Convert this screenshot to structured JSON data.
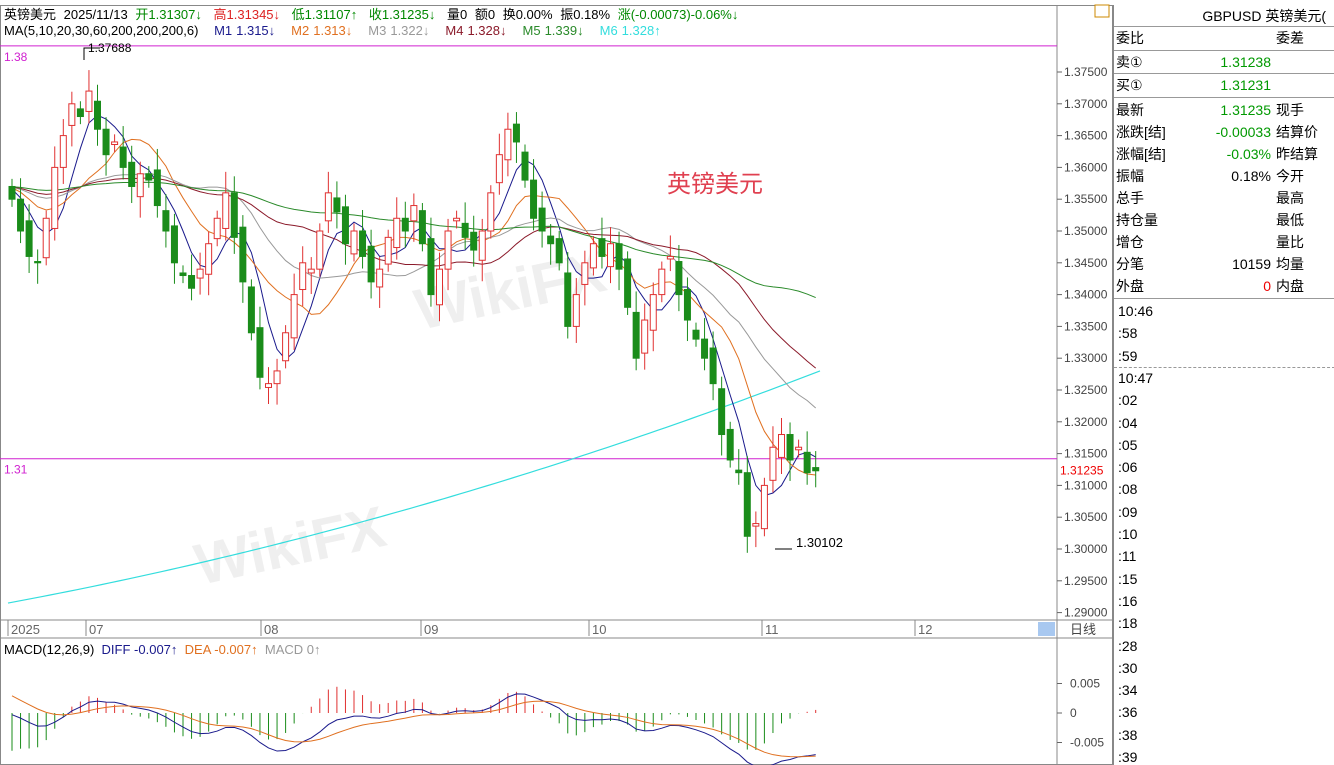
{
  "header": {
    "name": "英镑美元",
    "date": "2025/11/13",
    "open_label": "开",
    "open": "1.31307↓",
    "high_label": "高",
    "high": "1.31345↓",
    "low_label": "低",
    "low": "1.31107↑",
    "close_label": "收",
    "close": "1.31235↓",
    "volume": "量0",
    "amount": "额0",
    "turnover": "换0.00%",
    "amplitude": "振0.18%",
    "change": "涨(-0.00073)-0.06%↓"
  },
  "ma_header": {
    "label": "MA(5,10,20,30,60,200,200,200,6)",
    "items": [
      {
        "name": "M1",
        "value": "1.315↓",
        "color": "#1a1a8c"
      },
      {
        "name": "M2",
        "value": "1.313↓",
        "color": "#e07020"
      },
      {
        "name": "M3",
        "value": "1.322↓",
        "color": "#999999"
      },
      {
        "name": "M4",
        "value": "1.328↓",
        "color": "#8b1a2a"
      },
      {
        "name": "M5",
        "value": "1.339↓",
        "color": "#2a8a2a"
      },
      {
        "name": "M6",
        "value": "1.328↑",
        "color": "#33dddd"
      }
    ]
  },
  "chart_label": "英镑美元",
  "watermark": "WikiFX",
  "hlines": [
    {
      "label": "1.38",
      "price": 1.3791
    },
    {
      "label": "1.31",
      "price": 1.3142
    }
  ],
  "chart_data": {
    "type": "candlestick",
    "price_ticks": [
      "1.37500",
      "1.37000",
      "1.36500",
      "1.36000",
      "1.35500",
      "1.35000",
      "1.34500",
      "1.34000",
      "1.33500",
      "1.33000",
      "1.32500",
      "1.32000",
      "1.31500",
      "1.31000",
      "1.30500",
      "1.30000",
      "1.29500",
      "1.29000"
    ],
    "ylim": [
      1.29,
      1.375
    ],
    "date_ticks": [
      "2025",
      "07",
      "08",
      "09",
      "10",
      "11",
      "12"
    ],
    "period_label": "日线",
    "last_price": "1.31235",
    "max_label": "1.37688",
    "min_label": "1.30102",
    "closes": [
      1.355,
      1.35,
      1.346,
      1.345,
      1.352,
      1.36,
      1.365,
      1.37,
      1.368,
      1.372,
      1.366,
      1.362,
      1.364,
      1.36,
      1.357,
      1.359,
      1.358,
      1.354,
      1.35,
      1.345,
      1.343,
      1.341,
      1.344,
      1.348,
      1.352,
      1.356,
      1.349,
      1.342,
      1.334,
      1.327,
      1.326,
      1.328,
      1.334,
      1.34,
      1.345,
      1.344,
      1.35,
      1.356,
      1.353,
      1.348,
      1.35,
      1.346,
      1.342,
      1.344,
      1.349,
      1.352,
      1.35,
      1.354,
      1.348,
      1.34,
      1.344,
      1.35,
      1.352,
      1.349,
      1.347,
      1.35,
      1.356,
      1.362,
      1.366,
      1.364,
      1.358,
      1.352,
      1.35,
      1.348,
      1.345,
      1.335,
      1.34,
      1.345,
      1.348,
      1.346,
      1.348,
      1.344,
      1.338,
      1.33,
      1.336,
      1.34,
      1.344,
      1.346,
      1.34,
      1.336,
      1.333,
      1.33,
      1.326,
      1.318,
      1.314,
      1.312,
      1.302,
      1.304,
      1.31,
      1.316,
      1.318,
      1.314,
      1.316,
      1.312,
      1.3123
    ],
    "ma6_range": [
      1.2915,
      1.328
    ],
    "up_color": "#e03030",
    "down_color": "#1a8c1a",
    "macd": {
      "label": "MACD(12,26,9)",
      "diff": "DIFF -0.007↑",
      "dea": "DEA -0.007↑",
      "macd": "MACD 0↑",
      "ticks": [
        "0.005",
        "0",
        "-0.005"
      ]
    }
  },
  "panel": {
    "title": "GBPUSD 英镑美元(",
    "weibi": "委比",
    "weicha": "委差",
    "sell_label": "卖①",
    "sell": "1.31238",
    "buy_label": "买①",
    "buy": "1.31231",
    "rows": [
      {
        "l": "最新",
        "v": "1.31235",
        "r": "现手",
        "c": "#090"
      },
      {
        "l": "涨跌[结]",
        "v": "-0.00033",
        "r": "结算价",
        "c": "#090"
      },
      {
        "l": "涨幅[结]",
        "v": "-0.03%",
        "r": "昨结算",
        "c": "#090"
      },
      {
        "l": "振幅",
        "v": "0.18%",
        "r": "今开",
        "c": "#000"
      },
      {
        "l": "总手",
        "v": "",
        "r": "最高",
        "c": "#000"
      },
      {
        "l": "持仓量",
        "v": "",
        "r": "最低",
        "c": "#000"
      },
      {
        "l": "增仓",
        "v": "",
        "r": "量比",
        "c": "#000"
      },
      {
        "l": "分笔",
        "v": "10159",
        "r": "均量",
        "c": "#000"
      },
      {
        "l": "外盘",
        "v": "0",
        "r": "内盘",
        "c": "#e00"
      }
    ],
    "times": [
      "10:46",
      ":58",
      ":59",
      "10:47",
      ":02",
      ":04",
      ":05",
      ":06",
      ":08",
      ":09",
      ":10",
      ":11",
      ":15",
      ":16",
      ":18",
      ":28",
      ":30",
      ":34",
      ":36",
      ":38",
      ":39"
    ]
  }
}
